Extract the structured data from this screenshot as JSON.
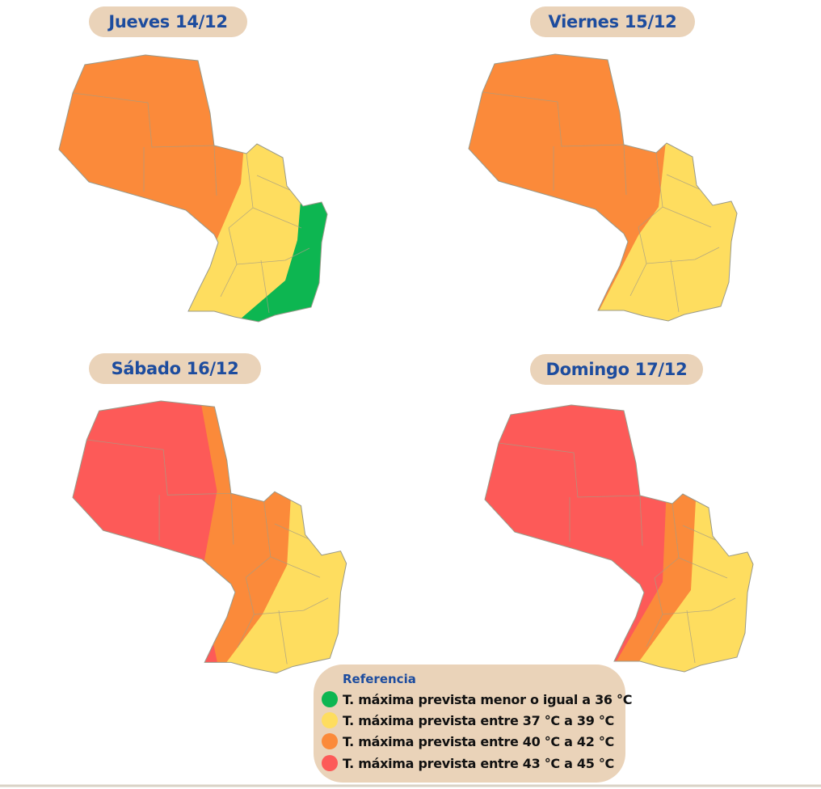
{
  "maps": [
    {
      "title": "Jueves 14/12"
    },
    {
      "title": "Viernes 15/12"
    },
    {
      "title": "Sábado 16/12"
    },
    {
      "title": "Domingo 17/12"
    }
  ],
  "legend": {
    "title": "Referencia",
    "items": [
      "T. máxima prevista menor o igual a 36 °C",
      "T. máxima prevista entre 37 °C a 39 °C",
      "T. máxima prevista entre 40 °C a 42 °C",
      "T. máxima prevista entre 43 °C a 45 °C"
    ]
  }
}
